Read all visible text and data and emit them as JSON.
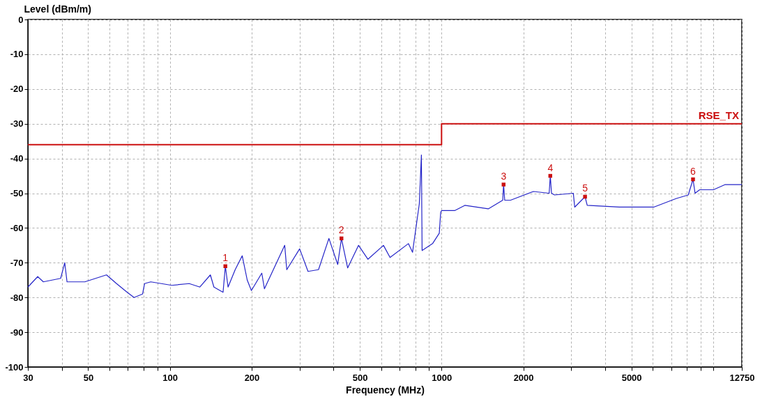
{
  "chart_data": {
    "type": "line",
    "xlabel": "Frequency (MHz)",
    "ylabel": "Level (dBm/m)",
    "log": "x",
    "grid": true,
    "legend": false,
    "xlim": [
      30,
      12750
    ],
    "ylim": [
      -100,
      0
    ],
    "xticks": [
      30,
      {
        "value": 40,
        "label": null
      },
      50,
      {
        "value": 60,
        "label": null
      },
      {
        "value": 70,
        "label": null
      },
      {
        "value": 80,
        "label": null
      },
      {
        "value": 90,
        "label": null
      },
      100,
      200,
      {
        "value": 300,
        "label": null
      },
      {
        "value": 400,
        "label": null
      },
      500,
      {
        "value": 600,
        "label": null
      },
      {
        "value": 700,
        "label": null
      },
      {
        "value": 800,
        "label": null
      },
      {
        "value": 900,
        "label": null
      },
      1000,
      2000,
      {
        "value": 3000,
        "label": null
      },
      {
        "value": 4000,
        "label": null
      },
      5000,
      {
        "value": 6000,
        "label": null
      },
      {
        "value": 7000,
        "label": null
      },
      {
        "value": 8000,
        "label": null
      },
      {
        "value": 9000,
        "label": null
      },
      {
        "value": 10000,
        "label": null
      },
      12750
    ],
    "yticks": [
      -100,
      -90,
      -80,
      -70,
      -60,
      -50,
      -40,
      -30,
      -20,
      -10,
      0
    ],
    "series": [
      {
        "type": "line",
        "color": "#2424c8",
        "x": [
          30,
          32.6,
          34.2,
          39.6,
          41,
          41.8,
          48.6,
          58.4,
          63.6,
          69.6,
          73.8,
          79.3,
          80.7,
          85,
          93,
          101.6,
          117.8,
          128.9,
          140.9,
          145.2,
          156.9,
          160,
          163.7,
          173.9,
          184.6,
          192.6,
          199.5,
          217.9,
          222.8,
          264.6,
          269.3,
          300.3,
          322.4,
          352.4,
          384.9,
          414.6,
          428,
          451.2,
          494.8,
          535.9,
          611.3,
          646.2,
          755,
          782,
          828.3,
          843,
          848,
          926.7,
          981,
          992.7,
          1000,
          1117,
          1218,
          1486,
          1680,
          1692,
          1708,
          1795,
          2180,
          2490,
          2514,
          2540,
          2608,
          3056,
          3092,
          3375,
          3438,
          4517,
          6040,
          7322,
          8095,
          8430,
          8577,
          8918,
          10022,
          11075,
          12750
        ],
        "values": [
          -77,
          -74,
          -75.5,
          -74.5,
          -70,
          -75.5,
          -75.5,
          -73.5,
          -76,
          -78.5,
          -80,
          -79,
          -76,
          -75.5,
          -76,
          -76.5,
          -76,
          -77,
          -73.5,
          -77,
          -78.5,
          -71,
          -77,
          -72,
          -68,
          -75,
          -78,
          -73,
          -77.5,
          -65,
          -72,
          -66,
          -72.5,
          -72,
          -63,
          -70.5,
          -63,
          -71.5,
          -65,
          -69,
          -65,
          -68.5,
          -64.5,
          -67,
          -53,
          -39,
          -66.5,
          -64.5,
          -61.5,
          -55.5,
          -55,
          -55,
          -53.5,
          -54.5,
          -52,
          -47.5,
          -52,
          -52,
          -49.5,
          -50,
          -45,
          -50,
          -50.5,
          -50,
          -54,
          -51,
          -53.5,
          -54,
          -54,
          -51.5,
          -50.5,
          -46,
          -50,
          -49,
          -49,
          -47.5,
          -47.5
        ]
      },
      {
        "type": "step",
        "name": "RSE_TX",
        "color": "#cc1010",
        "x": [
          30,
          1000,
          12750
        ],
        "values": [
          -36,
          -30,
          -30
        ]
      },
      {
        "type": "scatter",
        "marker": "square",
        "color": "#cc1010",
        "x": [
          160,
          428,
          1692,
          2514,
          3375,
          8430
        ],
        "values": [
          -71,
          -63,
          -47.5,
          -45,
          -51,
          -46
        ]
      }
    ],
    "annotations": [
      {
        "text": "1",
        "x": 160,
        "y": -71
      },
      {
        "text": "2",
        "x": 428,
        "y": -63
      },
      {
        "text": "3",
        "x": 1692,
        "y": -47.5
      },
      {
        "text": "4",
        "x": 2514,
        "y": -45
      },
      {
        "text": "5",
        "x": 3375,
        "y": -51
      },
      {
        "text": "6",
        "x": 8430,
        "y": -46
      }
    ]
  }
}
